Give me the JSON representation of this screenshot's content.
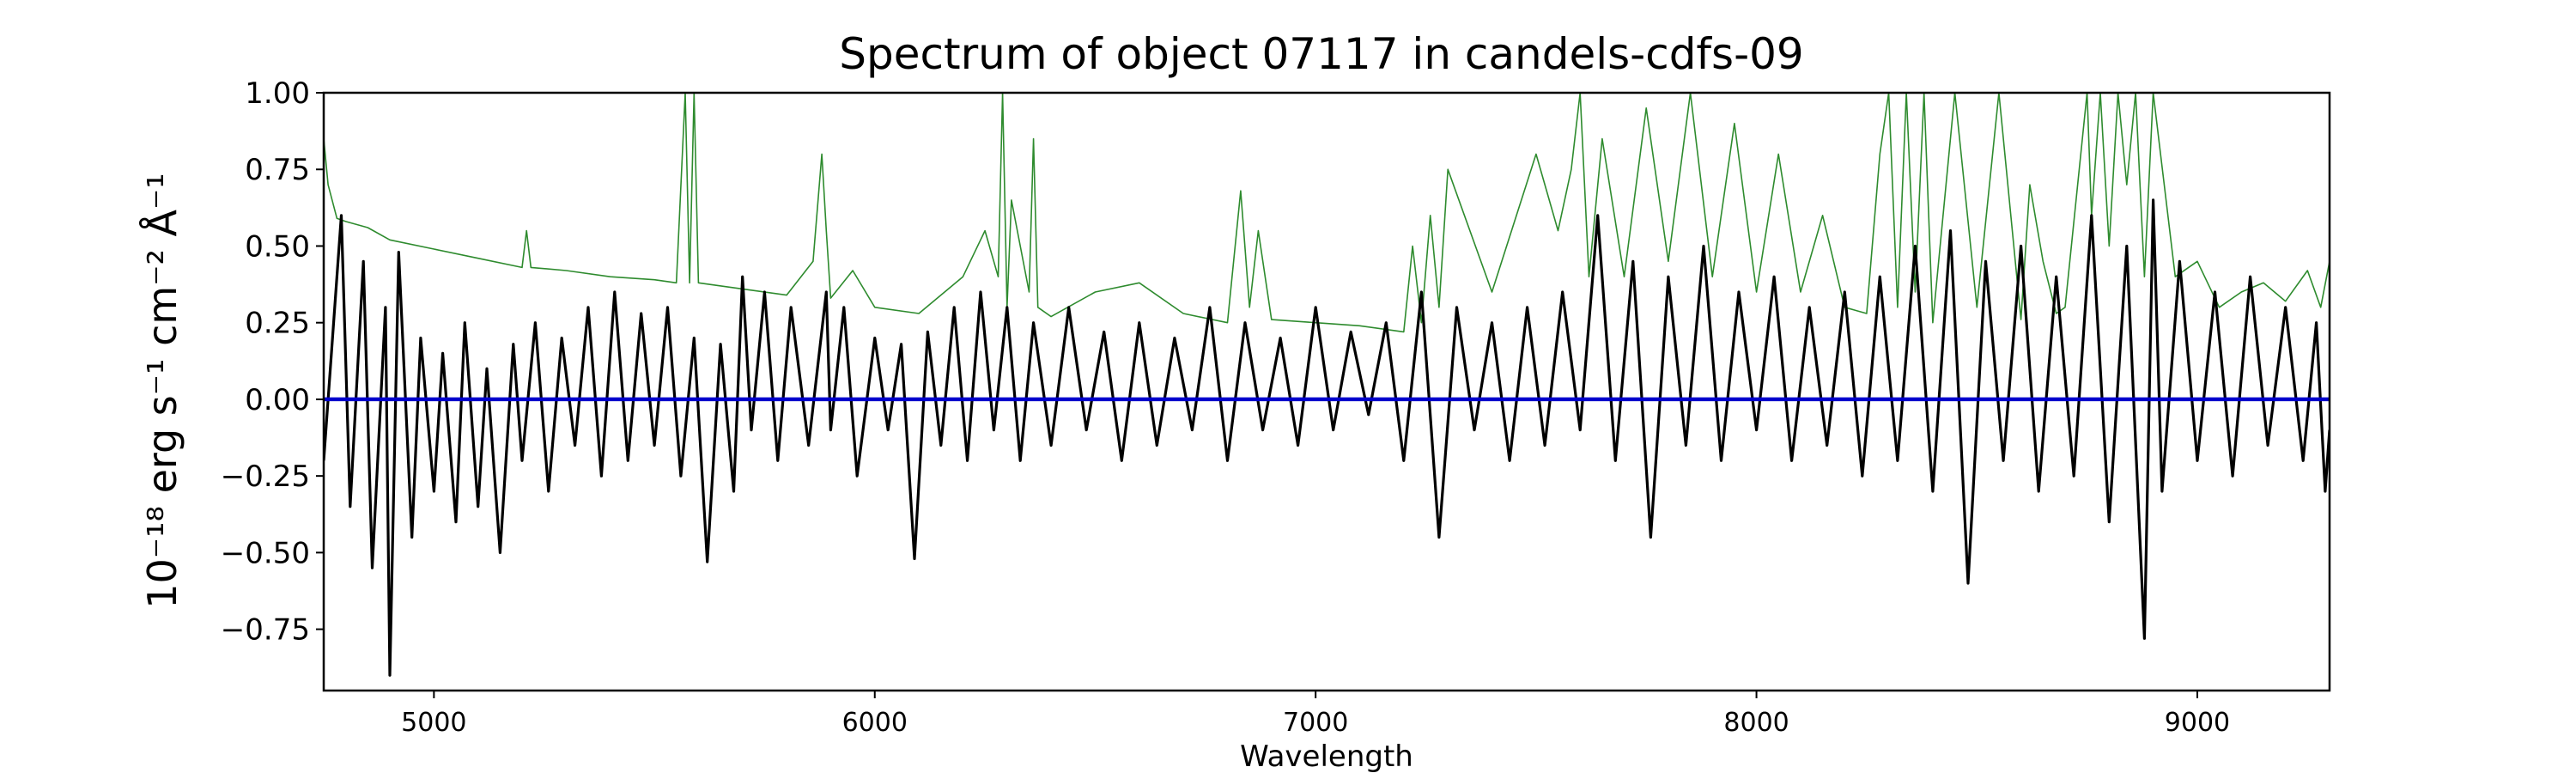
{
  "chart_data": {
    "type": "line",
    "title": "Spectrum of object 07117 in candels-cdfs-09",
    "xlabel": "Wavelength",
    "ylabel": "10⁻¹⁸ erg s⁻¹ cm⁻² Å⁻¹",
    "xlim": [
      4750,
      9300
    ],
    "ylim": [
      -0.95,
      1.0
    ],
    "x_ticks": [
      5000,
      6000,
      7000,
      8000,
      9000
    ],
    "x_tick_labels": [
      "5000",
      "6000",
      "7000",
      "8000",
      "9000"
    ],
    "y_ticks": [
      1.0,
      0.75,
      0.5,
      0.25,
      0.0,
      -0.25,
      -0.5,
      -0.75
    ],
    "y_tick_labels": [
      "1.00",
      "0.75",
      "0.50",
      "0.25",
      "0.00",
      "−0.25",
      "−0.50",
      "−0.75"
    ],
    "grid": false,
    "colors": {
      "flux": "#000000",
      "error": "#2e8b2e",
      "zero": "#0000cc"
    },
    "series": [
      {
        "id": "flux",
        "x": [
          4750,
          4790,
          4810,
          4840,
          4860,
          4890,
          4900,
          4920,
          4950,
          4970,
          5000,
          5020,
          5050,
          5070,
          5100,
          5120,
          5150,
          5180,
          5200,
          5230,
          5260,
          5290,
          5320,
          5350,
          5380,
          5410,
          5440,
          5470,
          5500,
          5530,
          5560,
          5590,
          5620,
          5650,
          5680,
          5700,
          5720,
          5750,
          5780,
          5810,
          5850,
          5890,
          5900,
          5930,
          5960,
          6000,
          6030,
          6060,
          6090,
          6120,
          6150,
          6180,
          6210,
          6240,
          6270,
          6300,
          6330,
          6360,
          6400,
          6440,
          6480,
          6520,
          6560,
          6600,
          6640,
          6680,
          6720,
          6760,
          6800,
          6840,
          6880,
          6920,
          6960,
          7000,
          7040,
          7080,
          7120,
          7160,
          7200,
          7240,
          7280,
          7320,
          7360,
          7400,
          7440,
          7480,
          7520,
          7560,
          7600,
          7640,
          7680,
          7720,
          7760,
          7800,
          7840,
          7880,
          7920,
          7960,
          8000,
          8040,
          8080,
          8120,
          8160,
          8200,
          8240,
          8280,
          8320,
          8360,
          8400,
          8440,
          8480,
          8520,
          8560,
          8600,
          8640,
          8680,
          8720,
          8760,
          8800,
          8840,
          8880,
          8900,
          8920,
          8960,
          9000,
          9040,
          9080,
          9120,
          9160,
          9200,
          9240,
          9270,
          9290,
          9300
        ],
        "y": [
          -0.2,
          0.6,
          -0.35,
          0.45,
          -0.55,
          0.3,
          -0.9,
          0.48,
          -0.45,
          0.2,
          -0.3,
          0.15,
          -0.4,
          0.25,
          -0.35,
          0.1,
          -0.5,
          0.18,
          -0.2,
          0.25,
          -0.3,
          0.2,
          -0.15,
          0.3,
          -0.25,
          0.35,
          -0.2,
          0.28,
          -0.15,
          0.3,
          -0.25,
          0.2,
          -0.53,
          0.18,
          -0.3,
          0.4,
          -0.1,
          0.35,
          -0.2,
          0.3,
          -0.15,
          0.35,
          -0.1,
          0.3,
          -0.25,
          0.2,
          -0.1,
          0.18,
          -0.52,
          0.22,
          -0.15,
          0.3,
          -0.2,
          0.35,
          -0.1,
          0.3,
          -0.2,
          0.25,
          -0.15,
          0.3,
          -0.1,
          0.22,
          -0.2,
          0.25,
          -0.15,
          0.2,
          -0.1,
          0.3,
          -0.2,
          0.25,
          -0.1,
          0.2,
          -0.15,
          0.3,
          -0.1,
          0.22,
          -0.05,
          0.25,
          -0.2,
          0.35,
          -0.45,
          0.3,
          -0.1,
          0.25,
          -0.2,
          0.3,
          -0.15,
          0.35,
          -0.1,
          0.6,
          -0.2,
          0.45,
          -0.45,
          0.4,
          -0.15,
          0.5,
          -0.2,
          0.35,
          -0.1,
          0.4,
          -0.2,
          0.3,
          -0.15,
          0.35,
          -0.25,
          0.4,
          -0.2,
          0.5,
          -0.3,
          0.55,
          -0.6,
          0.45,
          -0.2,
          0.5,
          -0.3,
          0.4,
          -0.25,
          0.6,
          -0.4,
          0.5,
          -0.78,
          0.65,
          -0.3,
          0.45,
          -0.2,
          0.35,
          -0.25,
          0.4,
          -0.15,
          0.3,
          -0.2,
          0.25,
          -0.3,
          -0.1
        ]
      },
      {
        "id": "error",
        "x": [
          4750,
          4760,
          4780,
          4800,
          4850,
          4900,
          5000,
          5100,
          5200,
          5210,
          5220,
          5300,
          5400,
          5500,
          5550,
          5570,
          5580,
          5590,
          5600,
          5700,
          5800,
          5860,
          5880,
          5890,
          5900,
          5950,
          6000,
          6100,
          6200,
          6250,
          6280,
          6290,
          6300,
          6310,
          6350,
          6360,
          6370,
          6400,
          6500,
          6600,
          6700,
          6800,
          6830,
          6850,
          6870,
          6900,
          7000,
          7100,
          7200,
          7220,
          7240,
          7260,
          7280,
          7300,
          7400,
          7500,
          7550,
          7580,
          7600,
          7620,
          7650,
          7700,
          7750,
          7800,
          7850,
          7900,
          7950,
          8000,
          8050,
          8100,
          8150,
          8200,
          8250,
          8280,
          8300,
          8320,
          8340,
          8360,
          8380,
          8400,
          8450,
          8500,
          8550,
          8600,
          8620,
          8650,
          8680,
          8700,
          8750,
          8760,
          8780,
          8800,
          8820,
          8840,
          8860,
          8880,
          8900,
          8950,
          9000,
          9050,
          9100,
          9150,
          9200,
          9250,
          9280,
          9300
        ],
        "y": [
          0.85,
          0.7,
          0.59,
          0.58,
          0.56,
          0.52,
          0.49,
          0.46,
          0.43,
          0.55,
          0.43,
          0.42,
          0.4,
          0.39,
          0.38,
          1.0,
          0.38,
          1.0,
          0.38,
          0.36,
          0.34,
          0.45,
          0.8,
          0.55,
          0.33,
          0.42,
          0.3,
          0.28,
          0.4,
          0.55,
          0.4,
          1.0,
          0.3,
          0.65,
          0.35,
          0.85,
          0.3,
          0.27,
          0.35,
          0.38,
          0.28,
          0.25,
          0.68,
          0.3,
          0.55,
          0.26,
          0.25,
          0.24,
          0.22,
          0.5,
          0.25,
          0.6,
          0.3,
          0.75,
          0.35,
          0.8,
          0.55,
          0.75,
          1.0,
          0.4,
          0.85,
          0.4,
          0.95,
          0.45,
          1.0,
          0.4,
          0.9,
          0.35,
          0.8,
          0.35,
          0.6,
          0.3,
          0.28,
          0.8,
          1.0,
          0.3,
          1.0,
          0.35,
          1.0,
          0.25,
          1.0,
          0.3,
          1.0,
          0.26,
          0.7,
          0.45,
          0.28,
          0.3,
          1.0,
          0.6,
          1.0,
          0.5,
          1.0,
          0.7,
          1.0,
          0.4,
          1.0,
          0.4,
          0.45,
          0.3,
          0.35,
          0.38,
          0.32,
          0.42,
          0.3,
          0.45
        ]
      },
      {
        "id": "zero",
        "x": [
          4750,
          9300
        ],
        "y": [
          0.0,
          0.0
        ]
      }
    ]
  }
}
